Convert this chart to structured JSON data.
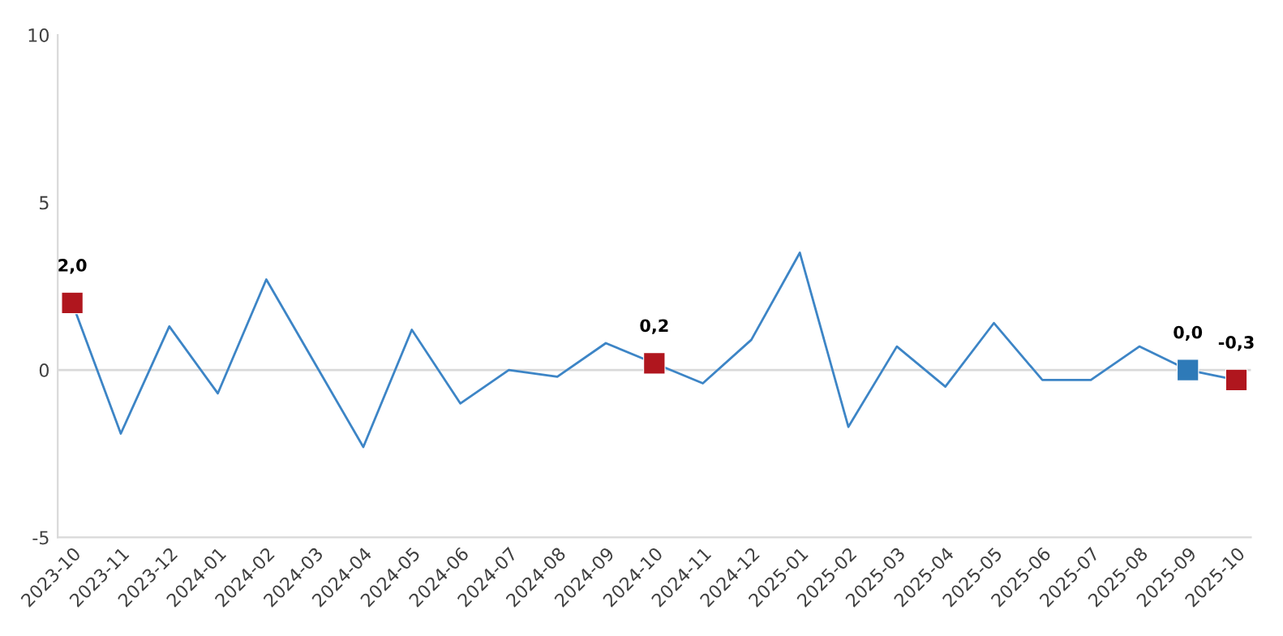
{
  "chart_data": {
    "type": "line",
    "categories": [
      "2023-10",
      "2023-11",
      "2023-12",
      "2024-01",
      "2024-02",
      "2024-03",
      "2024-04",
      "2024-05",
      "2024-06",
      "2024-07",
      "2024-08",
      "2024-09",
      "2024-10",
      "2024-11",
      "2024-12",
      "2025-01",
      "2025-02",
      "2025-03",
      "2025-04",
      "2025-05",
      "2025-06",
      "2025-07",
      "2025-08",
      "2025-09",
      "2025-10"
    ],
    "series": [
      {
        "color": "#3d85c6",
        "marker": "none",
        "values": [
          2.0,
          -1.9,
          1.3,
          -0.7,
          2.7,
          0.2,
          -2.3,
          1.2,
          -1.0,
          0.0,
          -0.2,
          0.8,
          0.2,
          -0.4,
          0.9,
          3.5,
          -1.7,
          0.7,
          -0.5,
          1.4,
          -0.3,
          -0.3,
          0.7,
          0.0,
          -0.3
        ]
      },
      {
        "type": "scatter",
        "marker": "square",
        "values": [
          2.0,
          null,
          null,
          null,
          null,
          null,
          null,
          null,
          null,
          null,
          null,
          null,
          0.2,
          null,
          null,
          null,
          null,
          null,
          null,
          null,
          null,
          null,
          null,
          0.0,
          -0.3
        ],
        "colors": [
          "#b0161e",
          null,
          null,
          null,
          null,
          null,
          null,
          null,
          null,
          null,
          null,
          null,
          "#b0161e",
          null,
          null,
          null,
          null,
          null,
          null,
          null,
          null,
          null,
          null,
          "#2e7ab8",
          "#b0161e"
        ],
        "value_labels": [
          "2,0",
          null,
          null,
          null,
          null,
          null,
          null,
          null,
          null,
          null,
          null,
          null,
          "0,2",
          null,
          null,
          null,
          null,
          null,
          null,
          null,
          null,
          null,
          null,
          "0,0",
          "-0,3"
        ]
      }
    ],
    "ylim": [
      -5,
      10
    ],
    "yticks": [
      -5,
      0,
      5,
      10
    ],
    "ref_lines": [
      {
        "axis": "y",
        "value": 0,
        "color": "#d9d9d9"
      }
    ],
    "grid": false
  }
}
